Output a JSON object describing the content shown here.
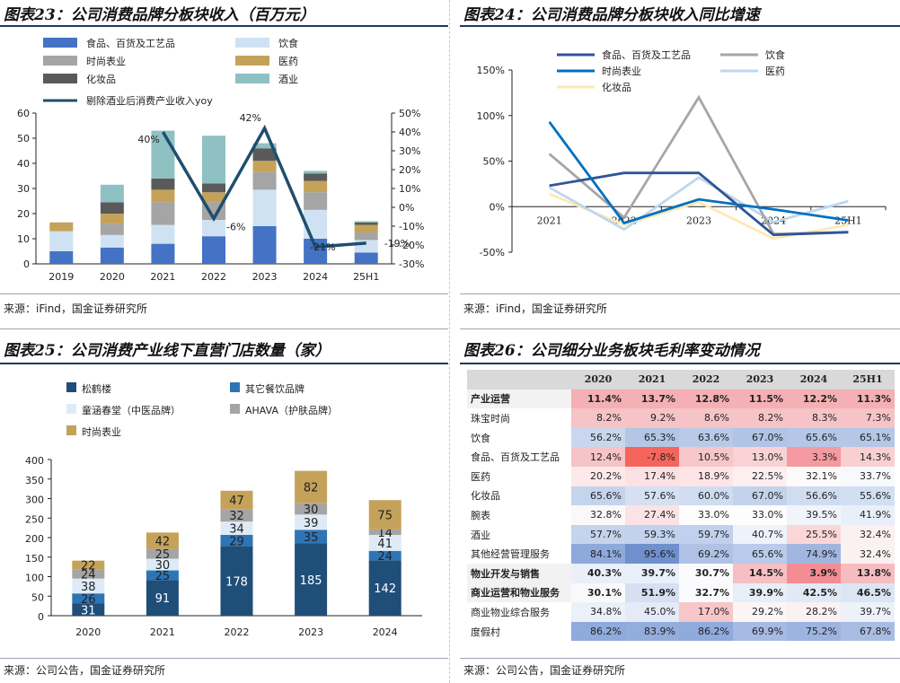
{
  "panels": {
    "p23": {
      "title": "图表23：公司消费品牌分板块收入（百万元）",
      "source": "来源：iFind，国金证券研究所"
    },
    "p24": {
      "title": "图表24：公司消费品牌分板块收入同比增速",
      "source": "来源：iFind，国金证券研究所"
    },
    "p25": {
      "title": "图表25：公司消费产业线下直营门店数量（家）",
      "source": "来源：公司公告，国金证券研究所"
    },
    "p26": {
      "title": "图表26：公司细分业务板块毛利率变动情况",
      "source": "来源：公司公告，国金证券研究所"
    }
  },
  "colors": {
    "food": "#4472c4",
    "drink": "#cfe2f3",
    "fashion": "#a5a5a5",
    "medicine": "#c5a25a",
    "cosmetics": "#5a5a5a",
    "liquor": "#8fc1c3",
    "yoy_line": "#1f4e6e",
    "songhelou": "#1f4e79",
    "other_catering": "#2e75b6",
    "tonghan": "#deebf7",
    "ahava": "#a5a5a5",
    "fashion2": "#c5a25a",
    "l_food": "#2f5597",
    "l_drink": "#a6a6a6",
    "l_fashion": "#0070c0",
    "l_medicine": "#bdd7ee",
    "l_cosmetics": "#fde9b3"
  },
  "chart_data": [
    {
      "id": "fig23",
      "type": "bar",
      "title": "图表23：公司消费品牌分板块收入（百万元）",
      "stacked": true,
      "categories": [
        "2019",
        "2020",
        "2021",
        "2022",
        "2023",
        "2024",
        "25H1"
      ],
      "series": [
        {
          "name": "食品、百货及工艺品",
          "color": "#4472c4",
          "values": [
            5,
            6.5,
            8,
            11,
            15,
            10,
            4.5
          ]
        },
        {
          "name": "饮食",
          "color": "#cfe2f3",
          "values": [
            8,
            5,
            7.5,
            6.5,
            14.5,
            11.5,
            5
          ]
        },
        {
          "name": "时尚表业",
          "color": "#a5a5a5",
          "values": [
            0,
            4.5,
            9,
            7,
            7,
            7,
            3
          ]
        },
        {
          "name": "医药",
          "color": "#c5a25a",
          "values": [
            3.5,
            4,
            5,
            4,
            4.5,
            4.5,
            3
          ]
        },
        {
          "name": "化妆品",
          "color": "#5a5a5a",
          "values": [
            0,
            4.5,
            4.5,
            3.5,
            5,
            3,
            1
          ]
        },
        {
          "name": "酒业",
          "color": "#8fc1c3",
          "values": [
            0,
            7,
            19,
            19,
            2,
            1,
            0.5
          ]
        }
      ],
      "line": {
        "name": "剔除酒业后消费产业收入yoy",
        "color": "#1f4e6e",
        "axis": "right",
        "values": [
          null,
          null,
          40,
          -6,
          42,
          -21,
          -19
        ]
      },
      "labels": [
        "40%",
        "-6%",
        "42%",
        "-21%",
        "-19%"
      ],
      "yaxis_left": {
        "min": 0,
        "max": 60,
        "ticks": [
          "0",
          "10",
          "20",
          "30",
          "40",
          "50",
          "60"
        ]
      },
      "yaxis_right": {
        "min": -30,
        "max": 50,
        "ticks": [
          "-30%",
          "-20%",
          "-10%",
          "0%",
          "10%",
          "20%",
          "30%",
          "40%",
          "50%"
        ]
      }
    },
    {
      "id": "fig24",
      "type": "line",
      "title": "图表24：公司消费品牌分板块收入同比增速",
      "x": [
        "2021",
        "2022",
        "2023",
        "2024",
        "25H1"
      ],
      "series": [
        {
          "name": "食品、百货及工艺品",
          "color": "#2f5597",
          "values": [
            23,
            37,
            37,
            -31,
            -28
          ]
        },
        {
          "name": "饮食",
          "color": "#a6a6a6",
          "values": [
            58,
            -12,
            120,
            -30,
            -28
          ]
        },
        {
          "name": "时尚表业",
          "color": "#0070c0",
          "values": [
            93,
            -18,
            8,
            -3,
            -15
          ]
        },
        {
          "name": "医药",
          "color": "#bdd7ee",
          "values": [
            21,
            -25,
            32,
            -17,
            6
          ]
        },
        {
          "name": "化妆品",
          "color": "#fde9b3",
          "values": [
            14,
            -20,
            5,
            -35,
            -20
          ]
        }
      ],
      "yaxis": {
        "min": -50,
        "max": 150,
        "ticks": [
          "-50%",
          "0%",
          "50%",
          "100%",
          "150%"
        ]
      }
    },
    {
      "id": "fig25",
      "type": "bar",
      "title": "图表25：公司消费产业线下直营门店数量（家）",
      "stacked": true,
      "categories": [
        "2020",
        "2021",
        "2022",
        "2023",
        "2024"
      ],
      "series": [
        {
          "name": "松鹤楼",
          "color": "#1f4e79",
          "values": [
            31,
            91,
            178,
            185,
            142
          ]
        },
        {
          "name": "其它餐饮品牌",
          "color": "#2e75b6",
          "values": [
            26,
            25,
            29,
            35,
            24
          ]
        },
        {
          "name": "童涵春堂（中医品牌）",
          "color": "#deebf7",
          "values": [
            38,
            30,
            34,
            39,
            41
          ]
        },
        {
          "name": "AHAVA（护肤品牌）",
          "color": "#a5a5a5",
          "values": [
            24,
            25,
            32,
            30,
            14
          ]
        },
        {
          "name": "时尚表业",
          "color": "#c5a25a",
          "values": [
            22,
            42,
            47,
            82,
            75
          ]
        }
      ],
      "yaxis": {
        "min": 0,
        "max": 400,
        "ticks": [
          "0",
          "50",
          "100",
          "150",
          "200",
          "250",
          "300",
          "350",
          "400"
        ]
      }
    },
    {
      "id": "fig26",
      "type": "table",
      "title": "图表26：公司细分业务板块毛利率变动情况",
      "columns": [
        "",
        "2020",
        "2021",
        "2022",
        "2023",
        "2024",
        "25H1"
      ],
      "rows": [
        {
          "label": "产业运营",
          "bold": true,
          "values": [
            "11.4%",
            "13.7%",
            "12.8%",
            "11.5%",
            "12.2%",
            "11.3%"
          ]
        },
        {
          "label": "珠宝时尚",
          "bold": false,
          "values": [
            "8.2%",
            "9.2%",
            "8.6%",
            "8.2%",
            "8.3%",
            "7.3%"
          ]
        },
        {
          "label": "饮食",
          "bold": false,
          "values": [
            "56.2%",
            "65.3%",
            "63.6%",
            "67.0%",
            "65.6%",
            "65.1%"
          ]
        },
        {
          "label": "食品、百货及工艺品",
          "bold": false,
          "values": [
            "12.4%",
            "-7.8%",
            "10.5%",
            "13.0%",
            "3.3%",
            "14.3%"
          ]
        },
        {
          "label": "医药",
          "bold": false,
          "values": [
            "20.2%",
            "17.4%",
            "18.9%",
            "22.5%",
            "32.1%",
            "33.7%"
          ]
        },
        {
          "label": "化妆品",
          "bold": false,
          "values": [
            "65.6%",
            "57.6%",
            "60.0%",
            "67.0%",
            "56.6%",
            "55.6%"
          ]
        },
        {
          "label": "腕表",
          "bold": false,
          "values": [
            "32.8%",
            "27.4%",
            "33.0%",
            "33.0%",
            "39.5%",
            "41.9%"
          ]
        },
        {
          "label": "酒业",
          "bold": false,
          "values": [
            "57.7%",
            "59.3%",
            "59.7%",
            "40.7%",
            "25.5%",
            "32.4%"
          ]
        },
        {
          "label": "其他经营管理服务",
          "bold": false,
          "values": [
            "84.1%",
            "95.6%",
            "69.2%",
            "65.6%",
            "74.9%",
            "32.4%"
          ]
        },
        {
          "label": "物业开发与销售",
          "bold": true,
          "values": [
            "40.3%",
            "39.7%",
            "30.7%",
            "14.5%",
            "3.9%",
            "13.8%"
          ]
        },
        {
          "label": "商业运营和物业服务",
          "bold": true,
          "values": [
            "30.1%",
            "51.9%",
            "32.7%",
            "39.9%",
            "42.5%",
            "46.5%"
          ]
        },
        {
          "label": "商业物业综合服务",
          "bold": false,
          "values": [
            "34.8%",
            "45.0%",
            "17.0%",
            "29.2%",
            "28.2%",
            "39.7%"
          ]
        },
        {
          "label": "度假村",
          "bold": false,
          "values": [
            "86.2%",
            "83.9%",
            "86.2%",
            "69.9%",
            "75.2%",
            "67.8%"
          ]
        }
      ],
      "cell_colors": [
        [
          "#f4b0b4",
          "#f4b0b4",
          "#f4b0b4",
          "#f4b0b4",
          "#f4b0b4",
          "#f4b0b4"
        ],
        [
          "#f6c3c6",
          "#f6c3c6",
          "#f6c3c6",
          "#f6c3c6",
          "#f6c3c6",
          "#f6c3c6"
        ],
        [
          "#c9d7ee",
          "#b2c6e6",
          "#b8cae8",
          "#b0c4e6",
          "#b4c7e7",
          "#b4c7e7"
        ],
        [
          "#f6c3c6",
          "#f4665d",
          "#f6c6c8",
          "#f8d2d4",
          "#f49aa0",
          "#f8d0d2"
        ],
        [
          "#fde9ea",
          "#fbe1e3",
          "#fde5e7",
          "#fdeef0",
          "#fdfafb",
          "#f7f9fd"
        ],
        [
          "#c5d4ed",
          "#d5e0f2",
          "#cfdcf1",
          "#c4d3ec",
          "#d0ddf1",
          "#d2def2"
        ],
        [
          "#fbf8fa",
          "#fbe3e5",
          "#fdfdfe",
          "#fdfdfe",
          "#f1f4fb",
          "#e9eff9"
        ],
        [
          "#c5d4ed",
          "#c2d1ec",
          "#c1d0ec",
          "#eef2fa",
          "#fad6d8",
          "#fbf1f2"
        ],
        [
          "#8ea9db",
          "#6f90cd",
          "#afc2e6",
          "#b9caea",
          "#a1b6df",
          "#fbf1f2"
        ],
        [
          "#eaf0f9",
          "#eaf0f9",
          "#fbfbfd",
          "#f7bfc3",
          "#f48c94",
          "#f6bcc0"
        ],
        [
          "#f9f9fb",
          "#d6e0f2",
          "#fbfbfd",
          "#e8eef8",
          "#e2e9f6",
          "#dce5f4"
        ],
        [
          "#ebf0f9",
          "#e4eaf7",
          "#f7c6c9",
          "#fbf5f6",
          "#fbf1f2",
          "#edf1fa"
        ],
        [
          "#8faadc",
          "#93addc",
          "#8faadc",
          "#a6bae3",
          "#9eb4e0",
          "#a9bde3"
        ]
      ]
    }
  ]
}
